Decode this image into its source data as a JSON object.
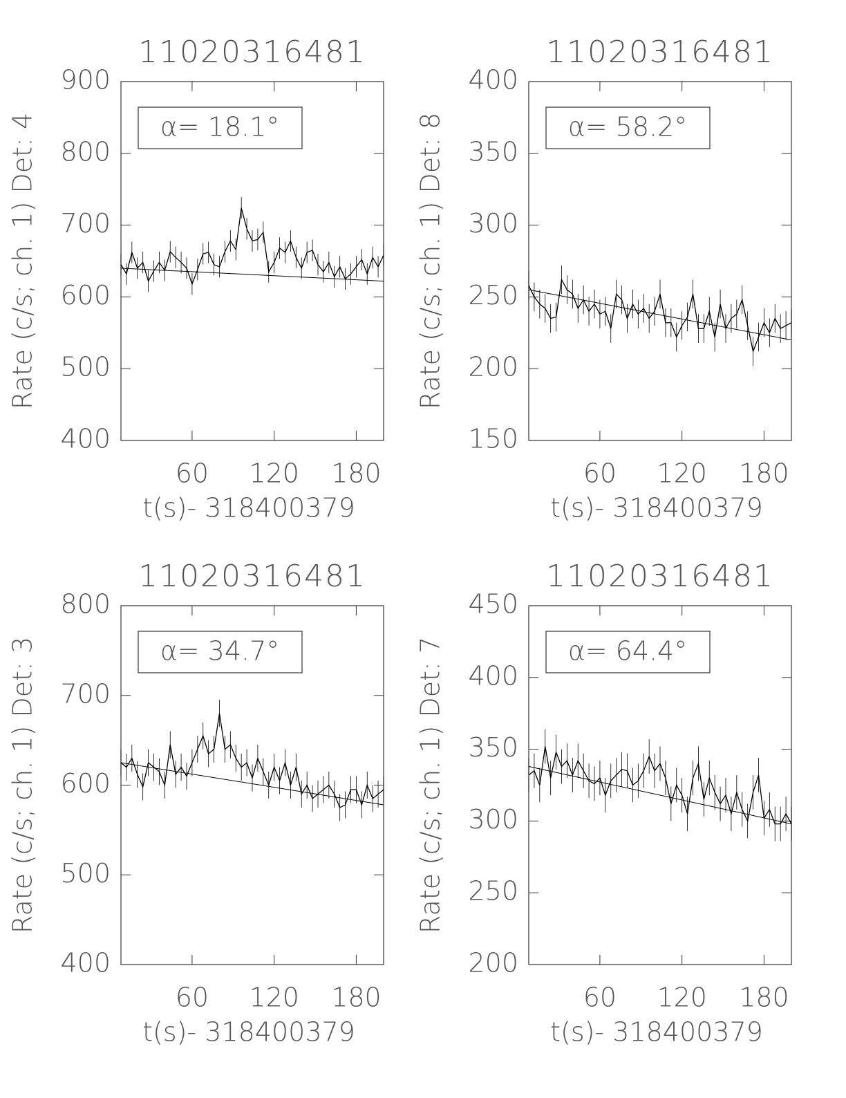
{
  "chart_data": [
    {
      "type": "line",
      "title": "11020316481",
      "xlabel": "t(s)- 318400379",
      "ylabel": "Rate (c/s; ch. 1) Det: 4",
      "annotation": "α= 18.1°",
      "color": "#000000",
      "xlim": [
        8,
        200
      ],
      "xticks": [
        60,
        120,
        180
      ],
      "ylim": [
        400,
        900
      ],
      "yticks": [
        400,
        500,
        600,
        700,
        800,
        900
      ],
      "x": [
        8,
        12,
        16,
        20,
        24,
        28,
        32,
        36,
        40,
        44,
        48,
        52,
        56,
        60,
        64,
        68,
        72,
        76,
        80,
        84,
        88,
        92,
        96,
        100,
        104,
        108,
        112,
        116,
        120,
        124,
        128,
        132,
        136,
        140,
        144,
        148,
        152,
        156,
        160,
        164,
        168,
        172,
        176,
        180,
        184,
        188,
        192,
        196,
        200
      ],
      "values": [
        645,
        632,
        662,
        640,
        648,
        622,
        636,
        648,
        637,
        663,
        655,
        648,
        640,
        618,
        638,
        660,
        662,
        645,
        642,
        663,
        678,
        666,
        724,
        695,
        678,
        680,
        690,
        635,
        648,
        668,
        662,
        678,
        655,
        640,
        662,
        665,
        645,
        635,
        648,
        628,
        642,
        625,
        632,
        642,
        652,
        632,
        655,
        642,
        658
      ],
      "error": 15,
      "fit": {
        "x": [
          8,
          200
        ],
        "values": [
          640,
          622
        ]
      }
    },
    {
      "type": "line",
      "title": "11020316481",
      "xlabel": "t(s)- 318400379",
      "ylabel": "Rate (c/s; ch. 1) Det: 8",
      "annotation": "α= 58.2°",
      "color": "#000000",
      "xlim": [
        8,
        200
      ],
      "xticks": [
        60,
        120,
        180
      ],
      "ylim": [
        150,
        400
      ],
      "yticks": [
        150,
        200,
        250,
        300,
        350,
        400
      ],
      "x": [
        8,
        12,
        16,
        20,
        24,
        28,
        32,
        36,
        40,
        44,
        48,
        52,
        56,
        60,
        64,
        68,
        72,
        76,
        80,
        84,
        88,
        92,
        96,
        100,
        104,
        108,
        112,
        116,
        120,
        124,
        128,
        132,
        136,
        140,
        144,
        148,
        152,
        156,
        160,
        164,
        168,
        172,
        176,
        180,
        184,
        188,
        192,
        196,
        200
      ],
      "values": [
        258,
        250,
        245,
        242,
        235,
        236,
        262,
        255,
        252,
        242,
        248,
        240,
        245,
        238,
        240,
        228,
        252,
        248,
        235,
        245,
        238,
        242,
        235,
        240,
        252,
        232,
        232,
        222,
        230,
        236,
        252,
        228,
        228,
        240,
        222,
        245,
        228,
        235,
        238,
        248,
        230,
        212,
        222,
        232,
        225,
        235,
        228,
        230,
        232
      ],
      "error": 10,
      "fit": {
        "x": [
          8,
          200
        ],
        "values": [
          255,
          220
        ]
      }
    },
    {
      "type": "line",
      "title": "11020316481",
      "xlabel": "t(s)- 318400379",
      "ylabel": "Rate (c/s; ch. 1) Det: 3",
      "annotation": "α= 34.7°",
      "color": "#000000",
      "xlim": [
        8,
        200
      ],
      "xticks": [
        60,
        120,
        180
      ],
      "ylim": [
        400,
        800
      ],
      "yticks": [
        400,
        500,
        600,
        700,
        800
      ],
      "x": [
        8,
        12,
        16,
        20,
        24,
        28,
        32,
        36,
        40,
        44,
        48,
        52,
        56,
        60,
        64,
        68,
        72,
        76,
        80,
        84,
        88,
        92,
        96,
        100,
        104,
        108,
        112,
        116,
        120,
        124,
        128,
        132,
        136,
        140,
        144,
        148,
        152,
        156,
        160,
        164,
        168,
        172,
        176,
        180,
        184,
        188,
        192,
        196,
        200
      ],
      "values": [
        625,
        620,
        630,
        612,
        598,
        625,
        620,
        615,
        600,
        645,
        612,
        620,
        610,
        625,
        640,
        655,
        635,
        640,
        680,
        640,
        645,
        630,
        620,
        625,
        608,
        630,
        615,
        600,
        620,
        605,
        625,
        600,
        620,
        590,
        600,
        585,
        590,
        595,
        600,
        590,
        575,
        578,
        595,
        595,
        578,
        600,
        585,
        590,
        595
      ],
      "error": 15,
      "fit": {
        "x": [
          8,
          200
        ],
        "values": [
          625,
          578
        ]
      }
    },
    {
      "type": "line",
      "title": "11020316481",
      "xlabel": "t(s)- 318400379",
      "ylabel": "Rate (c/s; ch. 1) Det: 7",
      "annotation": "α= 64.4°",
      "color": "#000000",
      "xlim": [
        8,
        200
      ],
      "xticks": [
        60,
        120,
        180
      ],
      "ylim": [
        200,
        450
      ],
      "yticks": [
        200,
        250,
        300,
        350,
        400,
        450
      ],
      "x": [
        8,
        12,
        16,
        20,
        24,
        28,
        32,
        36,
        40,
        44,
        48,
        52,
        56,
        60,
        64,
        68,
        72,
        76,
        80,
        84,
        88,
        92,
        96,
        100,
        104,
        108,
        112,
        116,
        120,
        124,
        128,
        132,
        136,
        140,
        144,
        148,
        152,
        156,
        160,
        164,
        168,
        172,
        176,
        180,
        184,
        188,
        192,
        196,
        200
      ],
      "values": [
        332,
        335,
        325,
        352,
        330,
        348,
        338,
        342,
        332,
        342,
        335,
        328,
        326,
        330,
        318,
        328,
        332,
        336,
        335,
        325,
        328,
        335,
        345,
        335,
        340,
        330,
        312,
        325,
        318,
        305,
        330,
        340,
        315,
        330,
        320,
        312,
        318,
        305,
        320,
        308,
        300,
        320,
        332,
        302,
        308,
        298,
        298,
        305,
        298
      ],
      "error": 12,
      "fit": {
        "x": [
          8,
          200
        ],
        "values": [
          338,
          298
        ]
      }
    }
  ]
}
